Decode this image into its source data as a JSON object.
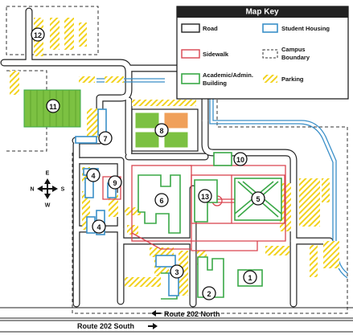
{
  "map_key": {
    "title": "Map Key",
    "items": {
      "road": "Road",
      "student_housing": "Student Housing",
      "sidewalk": "Sidewalk",
      "campus_boundary_line1": "Campus",
      "campus_boundary_line2": "Boundary",
      "academic_line1": "Academic/Admin.",
      "academic_line2": "Building",
      "parking": "Parking"
    }
  },
  "compass": {
    "n": "N",
    "s": "S",
    "e": "E",
    "w": "W"
  },
  "roads": {
    "north_label": "Route 202 North",
    "south_label": "Route 202 South"
  },
  "markers": [
    "1",
    "2",
    "3",
    "4",
    "4",
    "5",
    "6",
    "7",
    "8",
    "9",
    "10",
    "11",
    "12",
    "13"
  ],
  "colors": {
    "road": "#222222",
    "sidewalk": "#d9444f",
    "academic": "#3aa847",
    "housing": "#3a8fc8",
    "parking": "#f2d21e",
    "field": "#7cc142",
    "court_orange": "#f0a05a"
  }
}
